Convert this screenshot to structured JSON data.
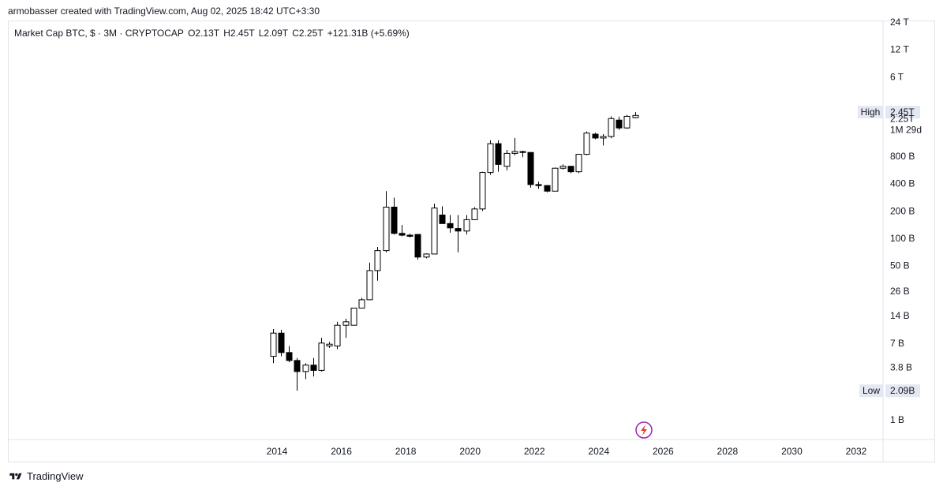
{
  "header": {
    "credit": "armobasser created with TradingView.com, Aug 02, 2025 18:42 UTC+3:30"
  },
  "legend": {
    "symbol": "Market Cap BTC, $ · 3M · CRYPTOCAP",
    "open": "O2.13T",
    "high": "H2.45T",
    "low": "L2.09T",
    "close": "C2.25T",
    "change": "+121.31B (+5.69%)"
  },
  "footer": {
    "brand": "TradingView"
  },
  "colors": {
    "up_fill": "#ffffff",
    "down_fill": "#000000",
    "wick": "#000000",
    "grid": "#e0e3eb",
    "label_bg": "#e3e8f3",
    "lightning": "#9c27b0"
  },
  "chart_data": {
    "type": "candlestick",
    "title": "Market Cap BTC, $ · 3M · CRYPTOCAP",
    "y_scale": "log",
    "y_tick_labels": [
      "24 T",
      "12 T",
      "6 T",
      "800 B",
      "400 B",
      "200 B",
      "100 B",
      "50 B",
      "26 B",
      "14 B",
      "7 B",
      "3.8 B",
      "1 B"
    ],
    "y_tick_values": [
      24000,
      12000,
      6000,
      800,
      400,
      200,
      100,
      50,
      26,
      14,
      7,
      3.8,
      1
    ],
    "price_labels": [
      {
        "label": "High",
        "value_text": "2.45T",
        "value": 2450
      },
      {
        "label": "",
        "value_text": "2.25T",
        "value": 2250
      },
      {
        "label": "",
        "value_text": "1M 29d",
        "value": null
      },
      {
        "label": "Low",
        "value_text": "2.09B",
        "value": 2.09
      }
    ],
    "x_tick_labels": [
      "2014",
      "2016",
      "2018",
      "2020",
      "2022",
      "2024",
      "2026",
      "2028",
      "2030",
      "2032"
    ],
    "x_tick_years": [
      2014,
      2016,
      2018,
      2020,
      2022,
      2024,
      2026,
      2028,
      2030,
      2032
    ],
    "candles": [
      {
        "t": 2013.75,
        "o": 5.0,
        "h": 10.0,
        "l": 4.2,
        "c": 9.0
      },
      {
        "t": 2014.0,
        "o": 9.0,
        "h": 9.8,
        "l": 5.0,
        "c": 5.5
      },
      {
        "t": 2014.25,
        "o": 5.5,
        "h": 6.5,
        "l": 4.3,
        "c": 4.5
      },
      {
        "t": 2014.5,
        "o": 4.5,
        "h": 4.8,
        "l": 2.09,
        "c": 3.4
      },
      {
        "t": 2014.75,
        "o": 3.4,
        "h": 4.2,
        "l": 2.8,
        "c": 4.0
      },
      {
        "t": 2015.0,
        "o": 4.0,
        "h": 4.8,
        "l": 3.0,
        "c": 3.5
      },
      {
        "t": 2015.25,
        "o": 3.5,
        "h": 8.0,
        "l": 3.4,
        "c": 7.0
      },
      {
        "t": 2015.5,
        "o": 6.5,
        "h": 7.2,
        "l": 6.2,
        "c": 6.8
      },
      {
        "t": 2015.75,
        "o": 6.5,
        "h": 12.0,
        "l": 6.0,
        "c": 11.0
      },
      {
        "t": 2016.0,
        "o": 11.0,
        "h": 13.0,
        "l": 8.0,
        "c": 12.0
      },
      {
        "t": 2016.25,
        "o": 11.0,
        "h": 17.0,
        "l": 11.0,
        "c": 17.0
      },
      {
        "t": 2016.5,
        "o": 17.0,
        "h": 22.0,
        "l": 17.0,
        "c": 21.0
      },
      {
        "t": 2016.75,
        "o": 21.0,
        "h": 54.0,
        "l": 30.0,
        "c": 44.0
      },
      {
        "t": 2017.0,
        "o": 44.0,
        "h": 80.0,
        "l": 34.0,
        "c": 73.0
      },
      {
        "t": 2017.25,
        "o": 73.0,
        "h": 330.0,
        "l": 70.0,
        "c": 220.0
      },
      {
        "t": 2017.5,
        "o": 220.0,
        "h": 280.0,
        "l": 110.0,
        "c": 113.0
      },
      {
        "t": 2017.75,
        "o": 113.0,
        "h": 140.0,
        "l": 105.0,
        "c": 108.0
      },
      {
        "t": 2018.0,
        "o": 108.0,
        "h": 112.0,
        "l": 102.0,
        "c": 105.0
      },
      {
        "t": 2018.25,
        "o": 110.0,
        "h": 110.0,
        "l": 58.0,
        "c": 62.0
      },
      {
        "t": 2018.5,
        "o": 62.0,
        "h": 68.0,
        "l": 60.0,
        "c": 67.0
      },
      {
        "t": 2018.75,
        "o": 67.0,
        "h": 240.0,
        "l": 67.0,
        "c": 215.0
      },
      {
        "t": 2019.0,
        "o": 180.0,
        "h": 225.0,
        "l": 145.0,
        "c": 145.0
      },
      {
        "t": 2019.25,
        "o": 145.0,
        "h": 180.0,
        "l": 115.0,
        "c": 130.0
      },
      {
        "t": 2019.5,
        "o": 128.0,
        "h": 180.0,
        "l": 70.0,
        "c": 120.0
      },
      {
        "t": 2019.75,
        "o": 120.0,
        "h": 180.0,
        "l": 110.0,
        "c": 160.0
      },
      {
        "t": 2020.0,
        "o": 160.0,
        "h": 220.0,
        "l": 160.0,
        "c": 210.0
      },
      {
        "t": 2020.25,
        "o": 210.0,
        "h": 540.0,
        "l": 200.0,
        "c": 530.0
      },
      {
        "t": 2020.5,
        "o": 530.0,
        "h": 1200.0,
        "l": 500.0,
        "c": 1100.0
      },
      {
        "t": 2020.75,
        "o": 1100.0,
        "h": 1200.0,
        "l": 540.0,
        "c": 650.0
      },
      {
        "t": 2021.0,
        "o": 620.0,
        "h": 940.0,
        "l": 560.0,
        "c": 860.0
      },
      {
        "t": 2021.25,
        "o": 860.0,
        "h": 1270.0,
        "l": 820.0,
        "c": 900.0
      },
      {
        "t": 2021.5,
        "o": 900.0,
        "h": 920.0,
        "l": 780.0,
        "c": 880.0
      },
      {
        "t": 2021.75,
        "o": 880.0,
        "h": 880.0,
        "l": 360.0,
        "c": 390.0
      },
      {
        "t": 2022.0,
        "o": 390.0,
        "h": 420.0,
        "l": 350.0,
        "c": 380.0
      },
      {
        "t": 2022.25,
        "o": 380.0,
        "h": 385.0,
        "l": 320.0,
        "c": 330.0
      },
      {
        "t": 2022.5,
        "o": 330.0,
        "h": 600.0,
        "l": 330.0,
        "c": 590.0
      },
      {
        "t": 2022.75,
        "o": 590.0,
        "h": 650.0,
        "l": 570.0,
        "c": 620.0
      },
      {
        "t": 2023.0,
        "o": 620.0,
        "h": 620.0,
        "l": 520.0,
        "c": 540.0
      },
      {
        "t": 2023.25,
        "o": 540.0,
        "h": 850.0,
        "l": 520.0,
        "c": 840.0
      },
      {
        "t": 2023.5,
        "o": 840.0,
        "h": 1500.0,
        "l": 820.0,
        "c": 1440.0
      },
      {
        "t": 2023.75,
        "o": 1400.0,
        "h": 1450.0,
        "l": 1230.0,
        "c": 1270.0
      },
      {
        "t": 2024.0,
        "o": 1270.0,
        "h": 1400.0,
        "l": 1050.0,
        "c": 1320.0
      },
      {
        "t": 2024.25,
        "o": 1320.0,
        "h": 2200.0,
        "l": 1260.0,
        "c": 2080.0
      },
      {
        "t": 2024.5,
        "o": 2000.0,
        "h": 2180.0,
        "l": 1560.0,
        "c": 1640.0
      },
      {
        "t": 2024.75,
        "o": 1640.0,
        "h": 2280.0,
        "l": 1600.0,
        "c": 2200.0
      },
      {
        "t": 2025.0,
        "o": 2130.0,
        "h": 2450.0,
        "l": 2090.0,
        "c": 2250.0
      }
    ]
  }
}
